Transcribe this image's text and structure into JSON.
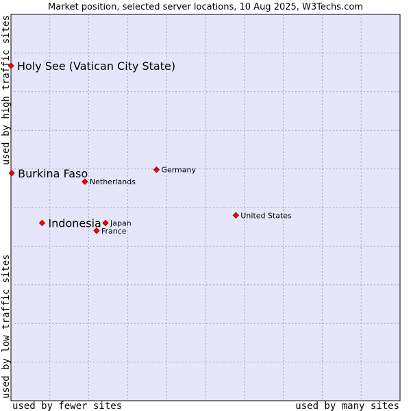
{
  "chart_data": {
    "type": "scatter",
    "title": "Market position, selected server locations, 10 Aug 2025, W3Techs.com",
    "xlabel_left": "used by fewer sites",
    "xlabel_right": "used by many sites",
    "ylabel_top": "used by high traffic sites",
    "ylabel_bottom": "used by low traffic sites",
    "xlim": [
      0,
      100
    ],
    "ylim": [
      0,
      100
    ],
    "grid": true,
    "points": [
      {
        "label": "Holy See (Vatican City State)",
        "x": 0,
        "y": 86.7,
        "highlight": true
      },
      {
        "label": "Burkina Faso",
        "x": 0.2,
        "y": 58.9,
        "highlight": true
      },
      {
        "label": "Indonesia",
        "x": 8.0,
        "y": 46.0,
        "highlight": true
      },
      {
        "label": "Netherlands",
        "x": 19.0,
        "y": 56.7,
        "highlight": false
      },
      {
        "label": "Germany",
        "x": 37.4,
        "y": 59.8,
        "highlight": false
      },
      {
        "label": "Japan",
        "x": 24.3,
        "y": 46.0,
        "highlight": false
      },
      {
        "label": "France",
        "x": 22.0,
        "y": 44.0,
        "highlight": false
      },
      {
        "label": "United States",
        "x": 57.8,
        "y": 48.0,
        "highlight": false
      }
    ]
  },
  "colors": {
    "plot_background": "#e5e6f9",
    "point": "#ff0000"
  }
}
